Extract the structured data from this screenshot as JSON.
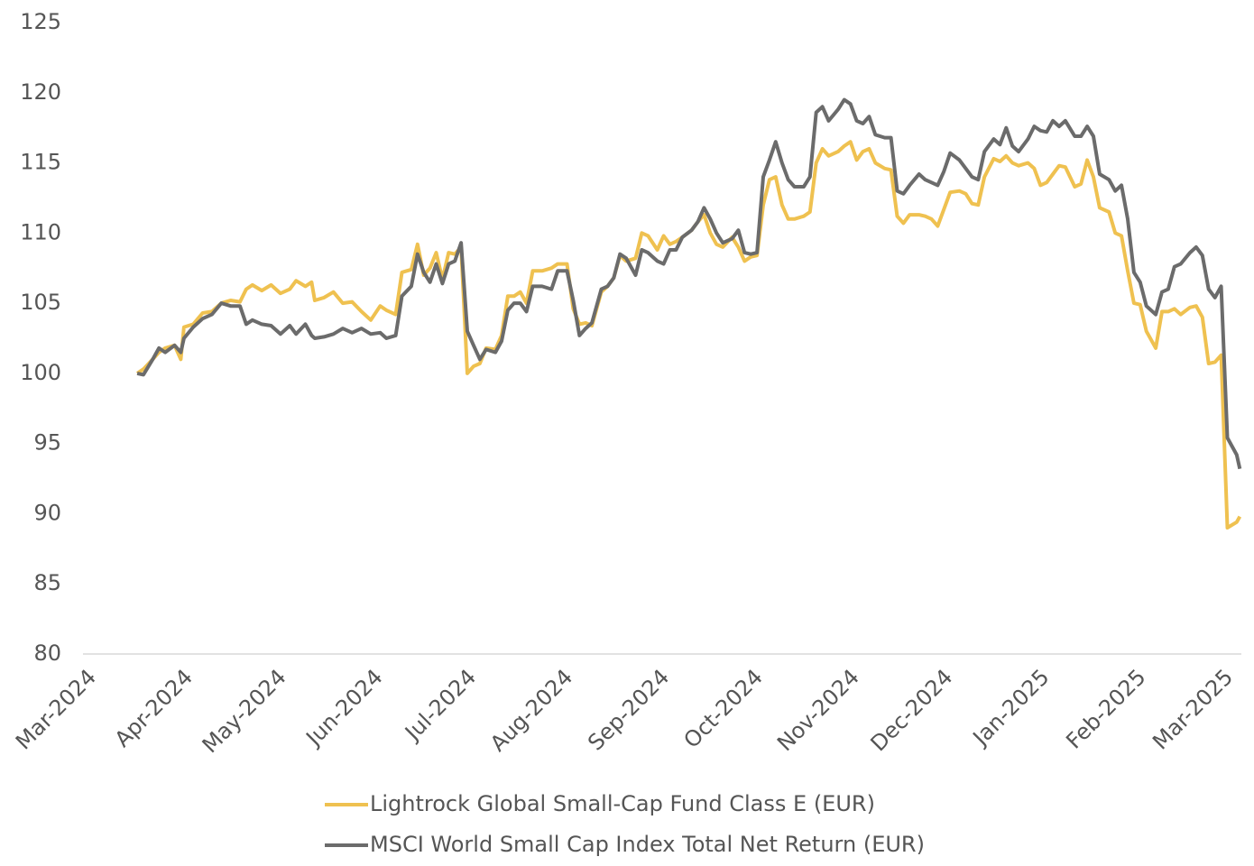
{
  "chart_data": {
    "type": "line",
    "x": [
      16,
      18,
      21,
      23,
      25,
      28,
      30,
      31,
      34,
      37,
      40,
      43,
      46,
      49,
      51,
      53,
      56,
      59,
      62,
      65,
      67,
      70,
      72,
      73,
      76,
      79,
      82,
      85,
      88,
      91,
      94,
      96,
      99,
      101,
      104,
      106,
      108,
      110,
      112,
      114,
      116,
      118,
      120,
      122,
      124,
      126,
      128,
      131,
      133,
      135,
      137,
      139,
      141,
      143,
      146,
      149,
      151,
      154,
      156,
      158,
      160,
      162,
      165,
      167,
      169,
      171,
      173,
      176,
      178,
      180,
      183,
      185,
      187,
      189,
      191,
      194,
      196,
      198,
      200,
      202,
      204,
      207,
      209,
      211,
      213,
      215,
      217,
      219,
      221,
      223,
      225,
      227,
      230,
      232,
      234,
      236,
      238,
      241,
      243,
      245,
      247,
      249,
      251,
      253,
      256,
      258,
      260,
      262,
      264,
      267,
      269,
      271,
      273,
      275,
      277,
      280,
      282,
      284,
      286,
      288,
      291,
      293,
      295,
      297,
      299,
      302,
      304,
      306,
      308,
      310,
      312,
      314,
      317,
      319,
      321,
      323,
      325,
      328,
      330,
      332,
      334,
      336,
      338,
      340,
      343,
      345,
      347,
      349,
      351,
      354,
      356,
      358,
      360,
      362,
      364,
      366,
      369,
      370
    ],
    "series": [
      {
        "name": "Lightrock Global Small-Cap Fund Class E (EUR)",
        "color": "#efc150",
        "values": [
          100,
          100.3,
          101,
          101.5,
          101.8,
          102,
          101,
          103.3,
          103.5,
          104.3,
          104.4,
          105,
          105.2,
          105.1,
          106,
          106.3,
          105.9,
          106.3,
          105.7,
          106,
          106.6,
          106.2,
          106.5,
          105.2,
          105.4,
          105.8,
          105,
          105.1,
          104.4,
          103.8,
          104.8,
          104.5,
          104.2,
          107.2,
          107.4,
          109.2,
          107,
          107.5,
          108.6,
          106.7,
          108.6,
          108.5,
          109,
          100,
          100.5,
          100.7,
          101.8,
          101.7,
          102.7,
          105.5,
          105.5,
          105.8,
          105,
          107.3,
          107.3,
          107.5,
          107.8,
          107.8,
          104.6,
          103.5,
          103.6,
          103.4,
          105.8,
          106.2,
          106.8,
          108.4,
          108,
          108.2,
          110,
          109.8,
          108.8,
          109.8,
          109.2,
          109.4,
          109.7,
          110.2,
          110.8,
          111.3,
          110,
          109.2,
          109,
          109.7,
          109,
          108,
          108.3,
          108.4,
          112,
          113.8,
          114,
          112,
          111,
          111,
          111.2,
          111.5,
          115,
          116,
          115.5,
          115.8,
          116.2,
          116.5,
          115.2,
          115.8,
          116,
          115,
          114.6,
          114.5,
          111.2,
          110.7,
          111.3,
          111.3,
          111.2,
          111,
          110.5,
          111.7,
          112.9,
          113,
          112.8,
          112.1,
          112,
          114,
          115.3,
          115.1,
          115.5,
          115,
          114.8,
          115,
          114.6,
          113.4,
          113.6,
          114.2,
          114.8,
          114.7,
          113.3,
          113.5,
          115.2,
          114,
          111.8,
          111.5,
          110,
          109.8,
          107.3,
          105,
          104.9,
          103,
          101.8,
          104.4,
          104.4,
          104.6,
          104.2,
          104.7,
          104.8,
          104,
          100.7,
          100.8,
          101.3,
          89,
          89.4,
          89.8
        ]
      },
      {
        "name": "MSCI World Small Cap Index Total Net Return (EUR)",
        "color": "#6b6b6b",
        "values": [
          100,
          99.9,
          101,
          101.8,
          101.5,
          102,
          101.5,
          102.5,
          103.3,
          103.9,
          104.2,
          105,
          104.8,
          104.8,
          103.5,
          103.8,
          103.5,
          103.4,
          102.8,
          103.4,
          102.8,
          103.5,
          102.7,
          102.5,
          102.6,
          102.8,
          103.2,
          102.9,
          103.2,
          102.8,
          102.9,
          102.5,
          102.7,
          105.5,
          106.2,
          108.5,
          107.2,
          106.5,
          107.8,
          106.4,
          107.8,
          108,
          109.3,
          103,
          102,
          101,
          101.7,
          101.5,
          102.3,
          104.5,
          105,
          105,
          104.4,
          106.2,
          106.2,
          106,
          107.3,
          107.3,
          105.2,
          102.7,
          103.2,
          103.6,
          106,
          106.2,
          106.8,
          108.5,
          108.2,
          107,
          108.8,
          108.6,
          108,
          107.8,
          108.8,
          108.8,
          109.7,
          110.2,
          110.8,
          111.8,
          111,
          110,
          109.3,
          109.6,
          110.2,
          108.6,
          108.5,
          108.6,
          114,
          115.2,
          116.5,
          115,
          113.8,
          113.3,
          113.3,
          114,
          118.6,
          119,
          118,
          118.8,
          119.5,
          119.2,
          118,
          117.8,
          118.3,
          117,
          116.8,
          116.8,
          113,
          112.8,
          113.4,
          114.2,
          113.8,
          113.6,
          113.4,
          114.4,
          115.7,
          115.2,
          114.6,
          114,
          113.8,
          115.8,
          116.7,
          116.3,
          117.5,
          116.2,
          115.8,
          116.7,
          117.6,
          117.3,
          117.2,
          118,
          117.6,
          118,
          116.9,
          116.9,
          117.6,
          116.9,
          114.2,
          113.8,
          113,
          113.4,
          111,
          107.2,
          106.5,
          104.8,
          104.2,
          105.8,
          106,
          107.6,
          107.8,
          108.6,
          109,
          108.4,
          106,
          105.4,
          106.2,
          95.4,
          94.2,
          93.2
        ]
      }
    ],
    "xlim": [
      -1.4,
      370.5
    ],
    "xticks": [
      {
        "value": 0,
        "label": "Mar-2024"
      },
      {
        "value": 31,
        "label": "Apr-2024"
      },
      {
        "value": 61,
        "label": "May-2024"
      },
      {
        "value": 92,
        "label": "Jun-2024"
      },
      {
        "value": 122,
        "label": "Jul-2024"
      },
      {
        "value": 153,
        "label": "Aug-2024"
      },
      {
        "value": 184,
        "label": "Sep-2024"
      },
      {
        "value": 214,
        "label": "Oct-2024"
      },
      {
        "value": 245,
        "label": "Nov-2024"
      },
      {
        "value": 275,
        "label": "Dec-2024"
      },
      {
        "value": 306,
        "label": "Jan-2025"
      },
      {
        "value": 337,
        "label": "Feb-2025"
      },
      {
        "value": 365,
        "label": "Mar-2025"
      }
    ],
    "ylim": [
      80,
      125
    ],
    "yticks": [
      80,
      85,
      90,
      95,
      100,
      105,
      110,
      115,
      120,
      125
    ],
    "grid": false
  }
}
